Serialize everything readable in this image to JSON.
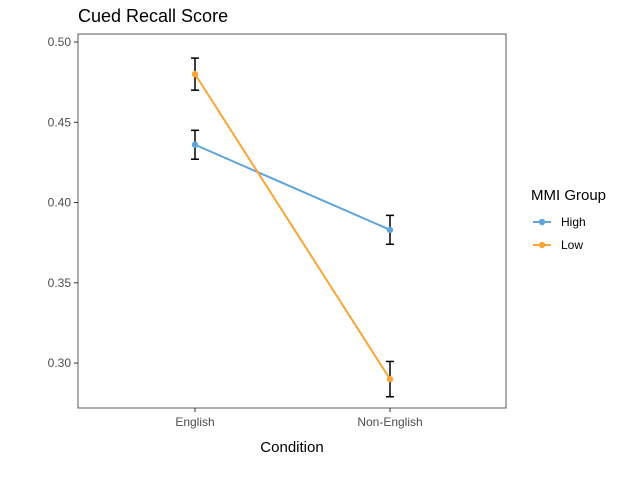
{
  "chart_data": {
    "type": "line",
    "title": "Cued Recall Score",
    "xlabel": "Condition",
    "ylabel": "",
    "categories": [
      "English",
      "Non-English"
    ],
    "ylim": [
      0.272,
      0.505
    ],
    "yticks": [
      0.3,
      0.35,
      0.4,
      0.45,
      0.5
    ],
    "ytick_labels": [
      "0.30",
      "0.35",
      "0.40",
      "0.45",
      "0.50"
    ],
    "grid": false,
    "legend": {
      "title": "MMI Group",
      "position": "right"
    },
    "series": [
      {
        "name": "High",
        "color": "#5DA5DA",
        "values": [
          0.436,
          0.383
        ],
        "error": [
          [
            0.427,
            0.445
          ],
          [
            0.374,
            0.392
          ]
        ]
      },
      {
        "name": "Low",
        "color": "#FAA43A",
        "values": [
          0.48,
          0.29
        ],
        "error": [
          [
            0.47,
            0.49
          ],
          [
            0.279,
            0.301
          ]
        ]
      }
    ],
    "errorbar_color": "#000000"
  }
}
